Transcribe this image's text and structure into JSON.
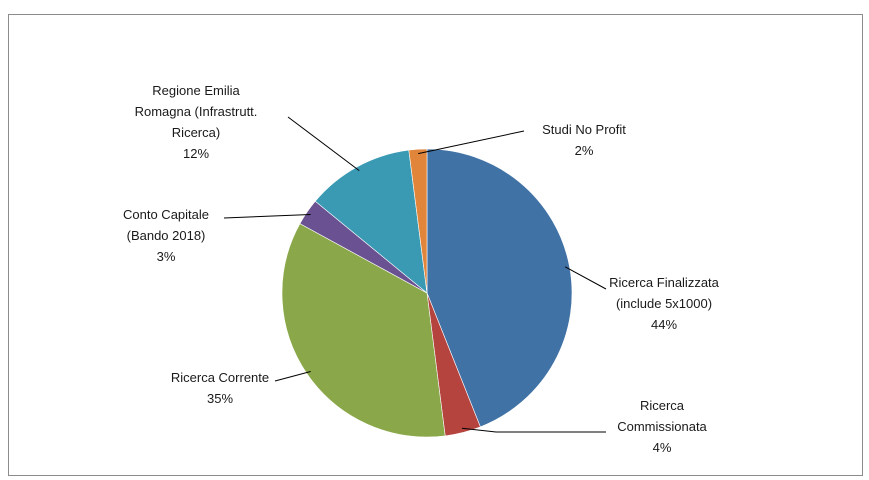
{
  "chart_data": {
    "type": "pie",
    "title": "",
    "slices": [
      {
        "label_lines": [
          "Ricerca Finalizzata",
          "(include 5x1000)"
        ],
        "pct_label": "44%",
        "value": 44,
        "color": "#4172a5"
      },
      {
        "label_lines": [
          "Ricerca",
          "Commissionata"
        ],
        "pct_label": "4%",
        "value": 4,
        "color": "#b5443f"
      },
      {
        "label_lines": [
          "Ricerca Corrente"
        ],
        "pct_label": "35%",
        "value": 35,
        "color": "#8aa84a"
      },
      {
        "label_lines": [
          "Conto Capitale",
          "(Bando 2018)"
        ],
        "pct_label": "3%",
        "value": 3,
        "color": "#6a5192"
      },
      {
        "label_lines": [
          "Regione Emilia",
          "Romagna (Infrastrutt.",
          "Ricerca)"
        ],
        "pct_label": "12%",
        "value": 12,
        "color": "#3a9ab4"
      },
      {
        "label_lines": [
          "Studi No Profit"
        ],
        "pct_label": "2%",
        "value": 2,
        "color": "#e0853a"
      }
    ],
    "legend": "none",
    "start_angle": "12 o'clock, clockwise"
  }
}
